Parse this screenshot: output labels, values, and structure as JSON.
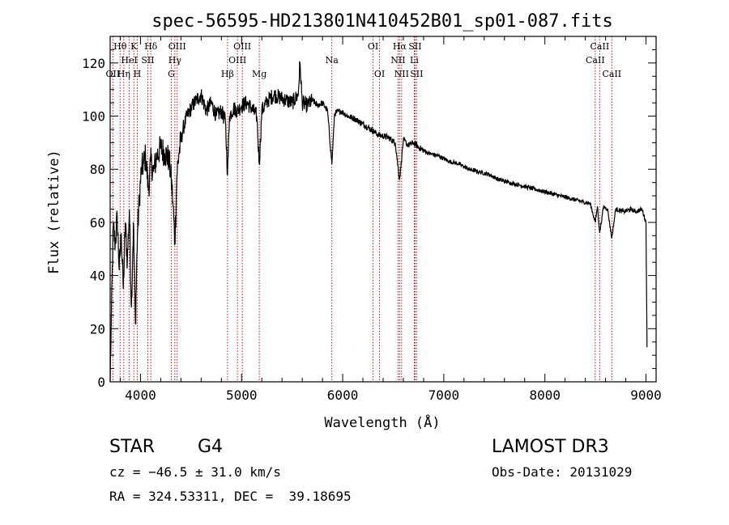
{
  "chart_data": {
    "type": "line",
    "title": "spec-56595-HD213801N410452B01_sp01-087.fits",
    "xlabel": "Wavelength (Å)",
    "ylabel": "Flux (relative)",
    "xlim": [
      3700,
      9100
    ],
    "ylim": [
      0,
      1300
    ],
    "x_ticks": [
      4000,
      5000,
      6000,
      7000,
      8000,
      9000
    ],
    "y_ticks": [
      0,
      20,
      40,
      60,
      80,
      100,
      120
    ],
    "y_tick_scale": 10,
    "series": [
      {
        "name": "flux",
        "x": [
          3700,
          3710,
          3730,
          3750,
          3770,
          3790,
          3810,
          3830,
          3850,
          3870,
          3890,
          3910,
          3930,
          3950,
          3970,
          3990,
          4010,
          4030,
          4050,
          4080,
          4100,
          4130,
          4160,
          4200,
          4240,
          4280,
          4300,
          4320,
          4340,
          4360,
          4380,
          4420,
          4460,
          4500,
          4550,
          4600,
          4650,
          4700,
          4750,
          4800,
          4840,
          4861,
          4880,
          4920,
          4960,
          5000,
          5050,
          5100,
          5150,
          5175,
          5200,
          5260,
          5320,
          5380,
          5440,
          5500,
          5560,
          5577,
          5600,
          5650,
          5700,
          5750,
          5800,
          5850,
          5893,
          5920,
          5980,
          6050,
          6120,
          6200,
          6280,
          6350,
          6450,
          6520,
          6563,
          6600,
          6650,
          6700,
          6760,
          6850,
          6950,
          7050,
          7150,
          7250,
          7350,
          7450,
          7550,
          7650,
          7750,
          7850,
          7950,
          8050,
          8150,
          8250,
          8350,
          8450,
          8498,
          8520,
          8542,
          8580,
          8620,
          8662,
          8700,
          8780,
          8850,
          8900,
          8960,
          9000,
          9010
        ],
        "values": [
          0,
          200,
          580,
          520,
          620,
          420,
          560,
          350,
          600,
          450,
          650,
          280,
          600,
          220,
          560,
          700,
          800,
          820,
          850,
          720,
          830,
          790,
          850,
          880,
          860,
          840,
          780,
          680,
          520,
          780,
          860,
          950,
          1000,
          1030,
          1060,
          1080,
          1020,
          1050,
          1000,
          1020,
          980,
          780,
          1000,
          1030,
          1020,
          1040,
          1050,
          1030,
          1000,
          820,
          1020,
          1060,
          1080,
          1070,
          1060,
          1050,
          1080,
          1200,
          1050,
          1040,
          1060,
          1040,
          1050,
          1020,
          820,
          1010,
          1020,
          1000,
          990,
          970,
          950,
          930,
          920,
          900,
          760,
          910,
          890,
          900,
          880,
          860,
          850,
          830,
          820,
          800,
          790,
          780,
          760,
          750,
          740,
          730,
          720,
          710,
          700,
          690,
          680,
          670,
          600,
          660,
          560,
          660,
          650,
          540,
          650,
          640,
          650,
          640,
          650,
          600,
          130
        ]
      }
    ],
    "lines": [
      {
        "label": "Hθ",
        "wavelength": 3798,
        "row": 1
      },
      {
        "label": "OII",
        "wavelength": 3727,
        "row": 3
      },
      {
        "label": "Hη",
        "wavelength": 3835,
        "row": 3
      },
      {
        "label": "HeI",
        "wavelength": 3889,
        "row": 2
      },
      {
        "label": "K",
        "wavelength": 3934,
        "row": 1
      },
      {
        "label": "H",
        "wavelength": 3968,
        "row": 3
      },
      {
        "label": "SII",
        "wavelength": 4072,
        "row": 2
      },
      {
        "label": "Hδ",
        "wavelength": 4102,
        "row": 1
      },
      {
        "label": "G",
        "wavelength": 4305,
        "row": 3
      },
      {
        "label": "Hγ",
        "wavelength": 4340,
        "row": 2
      },
      {
        "label": "OIII",
        "wavelength": 4363,
        "row": 1
      },
      {
        "label": "Hβ",
        "wavelength": 4861,
        "row": 3
      },
      {
        "label": "OIII",
        "wavelength": 4959,
        "row": 2
      },
      {
        "label": "OIII",
        "wavelength": 5007,
        "row": 1
      },
      {
        "label": "Mg",
        "wavelength": 5175,
        "row": 3
      },
      {
        "label": "Na",
        "wavelength": 5893,
        "row": 2
      },
      {
        "label": "OI",
        "wavelength": 6300,
        "row": 1
      },
      {
        "label": "OI",
        "wavelength": 6364,
        "row": 3
      },
      {
        "label": "NII",
        "wavelength": 6548,
        "row": 2
      },
      {
        "label": "Hα",
        "wavelength": 6563,
        "row": 1
      },
      {
        "label": "NII",
        "wavelength": 6583,
        "row": 3
      },
      {
        "label": "SII",
        "wavelength": 6716,
        "row": 1
      },
      {
        "label": "Li",
        "wavelength": 6708,
        "row": 2
      },
      {
        "label": "SII",
        "wavelength": 6731,
        "row": 3
      },
      {
        "label": "CaII",
        "wavelength": 8498,
        "row": 2
      },
      {
        "label": "CaII",
        "wavelength": 8542,
        "row": 1
      },
      {
        "label": "CaII",
        "wavelength": 8662,
        "row": 3
      }
    ]
  },
  "info": {
    "object_class": "STAR",
    "subclass": "G4",
    "survey": "LAMOST DR3",
    "cz": "cz = −46.5 ± 31.0 km/s",
    "obs_date": "Obs-Date: 20131029",
    "coords": "RA = 324.53311, DEC =  39.18695"
  }
}
